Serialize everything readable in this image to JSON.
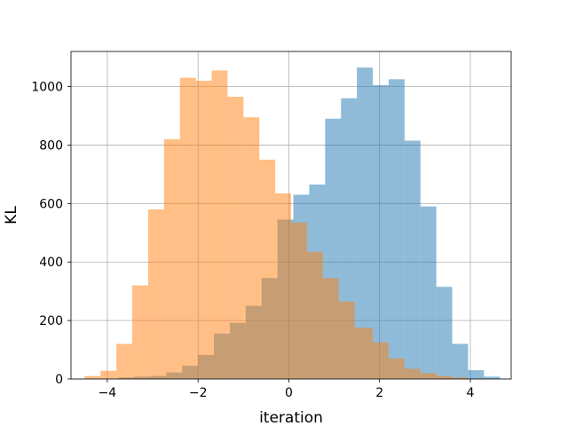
{
  "chart_data": {
    "type": "bar",
    "subtype": "overlapping-histogram",
    "title": "",
    "xlabel": "iteration",
    "ylabel": "KL",
    "xlim": [
      -4.8,
      4.9
    ],
    "ylim": [
      0,
      1120
    ],
    "xticks": [
      -4,
      -2,
      0,
      2,
      4
    ],
    "xtick_labels": [
      "−4",
      "−2",
      "0",
      "2",
      "4"
    ],
    "yticks": [
      0,
      200,
      400,
      600,
      800,
      1000
    ],
    "ytick_labels": [
      "0",
      "200",
      "400",
      "600",
      "800",
      "1000"
    ],
    "grid": true,
    "legend": "none",
    "series": [
      {
        "color": "#1f77b4",
        "alpha": 0.5,
        "bin_edges": [
          -3.75,
          -3.4,
          -3.05,
          -2.7,
          -2.35,
          -2.0,
          -1.65,
          -1.3,
          -0.95,
          -0.6,
          -0.25,
          0.1,
          0.45,
          0.8,
          1.15,
          1.5,
          1.85,
          2.2,
          2.55,
          2.9,
          3.25,
          3.6,
          3.95,
          4.3,
          4.65
        ],
        "counts": [
          5,
          8,
          10,
          22,
          45,
          82,
          155,
          192,
          250,
          345,
          545,
          630,
          665,
          890,
          960,
          1065,
          1005,
          1025,
          815,
          590,
          315,
          120,
          30,
          8
        ]
      },
      {
        "color": "#ff7f0e",
        "alpha": 0.5,
        "bin_edges": [
          -4.5,
          -4.15,
          -3.8,
          -3.45,
          -3.1,
          -2.75,
          -2.4,
          -2.05,
          -1.7,
          -1.35,
          -1.0,
          -0.65,
          -0.3,
          0.05,
          0.4,
          0.75,
          1.1,
          1.45,
          1.85,
          2.2,
          2.55,
          2.9,
          3.25,
          3.6,
          3.95
        ],
        "counts": [
          10,
          28,
          120,
          320,
          580,
          820,
          1030,
          1020,
          1055,
          965,
          895,
          750,
          635,
          535,
          435,
          345,
          265,
          175,
          125,
          70,
          35,
          20,
          10,
          5
        ]
      }
    ]
  }
}
